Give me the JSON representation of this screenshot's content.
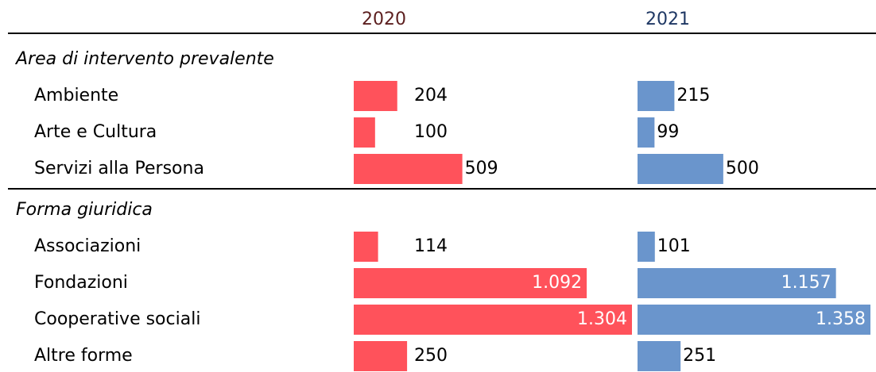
{
  "columns": [
    {
      "label": "2020",
      "color": "#ff525b",
      "header_color": "#5c1f1f"
    },
    {
      "label": "2021",
      "color": "#6a95cc",
      "header_color": "#1f3864"
    }
  ],
  "sections": [
    {
      "title": "Area di intervento prevalente",
      "rows": [
        {
          "label": "Ambiente",
          "values": [
            204,
            215
          ]
        },
        {
          "label": "Arte e Cultura",
          "values": [
            100,
            99
          ]
        },
        {
          "label": "Servizi alla Persona",
          "values": [
            509,
            500
          ]
        }
      ]
    },
    {
      "title": "Forma giuridica",
      "rows": [
        {
          "label": "Associazioni",
          "values": [
            114,
            101
          ]
        },
        {
          "label": "Fondazioni",
          "values": [
            1092,
            1157
          ],
          "value_labels": [
            "1.092",
            "1.157"
          ]
        },
        {
          "label": "Cooperative sociali",
          "values": [
            1304,
            1358
          ],
          "value_labels": [
            "1.304",
            "1.358"
          ]
        },
        {
          "label": "Altre forme",
          "values": [
            250,
            251
          ]
        }
      ]
    }
  ]
}
